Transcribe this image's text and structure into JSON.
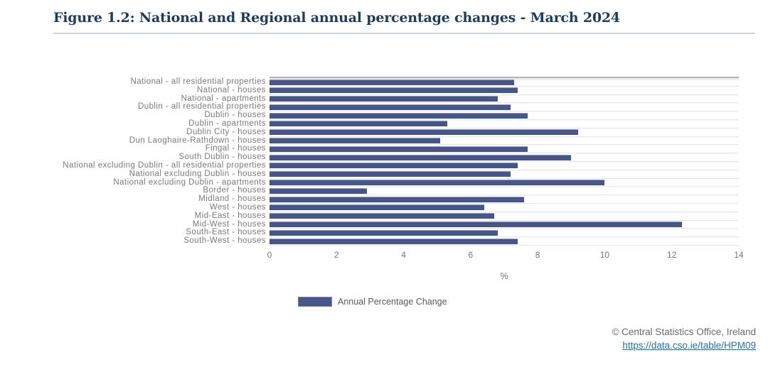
{
  "figure": {
    "title": "Figure 1.2: National and Regional annual percentage changes - March 2024"
  },
  "chart_data": {
    "type": "bar",
    "orientation": "horizontal",
    "title": "Figure 1.2: National and Regional annual percentage changes - March 2024",
    "categories": [
      "National - all residential properties",
      "National - houses",
      "National - apartments",
      "Dublin - all residential properties",
      "Dublin - houses",
      "Dublin - apartments",
      "Dublin City - houses",
      "Dun Laoghaire-Rathdown - houses",
      "Fingal - houses",
      "South Dublin - houses",
      "National excluding Dublin - all residential properties",
      "National excluding Dublin - houses",
      "National excluding Dublin - apartments",
      "Border - houses",
      "Midland - houses",
      "West - houses",
      "Mid-East - houses",
      "Mid-West - houses",
      "South-East - houses",
      "South-West - houses"
    ],
    "values": [
      7.3,
      7.4,
      6.8,
      7.2,
      7.7,
      5.3,
      9.2,
      5.1,
      7.7,
      9.0,
      7.4,
      7.2,
      10.0,
      2.9,
      7.6,
      6.4,
      6.7,
      12.3,
      6.8,
      7.4
    ],
    "series_name": "Annual Percentage Change",
    "xlabel": "%",
    "ylabel": "",
    "xlim": [
      0,
      14
    ],
    "xticks": [
      0,
      2,
      4,
      6,
      8,
      10,
      12,
      14
    ],
    "grid": "horizontal row separators only, no vertical gridlines",
    "legend_position": "bottom"
  },
  "legend": {
    "label": "Annual Percentage Change"
  },
  "axis": {
    "xlabel": "%"
  },
  "footer": {
    "copyright": "© Central Statistics Office, Ireland",
    "link": "https://data.cso.ie/table/HPM09"
  },
  "colors": {
    "title": "#1e3c5f",
    "bar": "#46568c",
    "bar_highlight": "#8f9ab8",
    "link": "#2a6db6",
    "label_gray": "#7b7b7b",
    "rule": "#c6d7e0"
  }
}
